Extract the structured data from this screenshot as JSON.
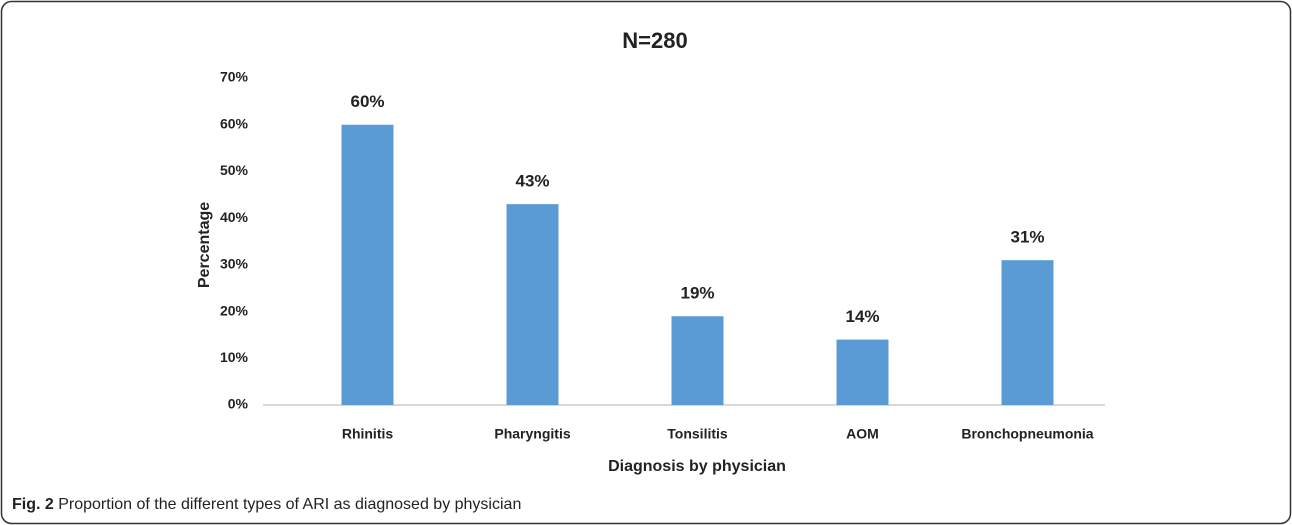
{
  "chart_data": {
    "type": "bar",
    "title": "N=280",
    "x_label": "Diagnosis by physician",
    "y_label": "Percentage",
    "categories": [
      "Rhinitis",
      "Pharyngitis",
      "Tonsilitis",
      "AOM",
      "Bronchopneumonia"
    ],
    "values": [
      60,
      43,
      19,
      14,
      31
    ],
    "value_labels": [
      "60%",
      "43%",
      "19%",
      "14%",
      "31%"
    ],
    "color": "#5b9bd5",
    "ylim": [
      0,
      70
    ],
    "yticks": [
      {
        "value": 0,
        "label": "0%"
      },
      {
        "value": 10,
        "label": "10%"
      },
      {
        "value": 20,
        "label": "20%"
      },
      {
        "value": 30,
        "label": "30%"
      },
      {
        "value": 40,
        "label": "40%"
      },
      {
        "value": 50,
        "label": "50%"
      },
      {
        "value": 60,
        "label": "60%"
      },
      {
        "value": 70,
        "label": "70%"
      }
    ],
    "grid": false
  },
  "caption": {
    "label": "Fig. 2",
    "text": "Proportion of the different types of ARI as diagnosed by physician"
  }
}
